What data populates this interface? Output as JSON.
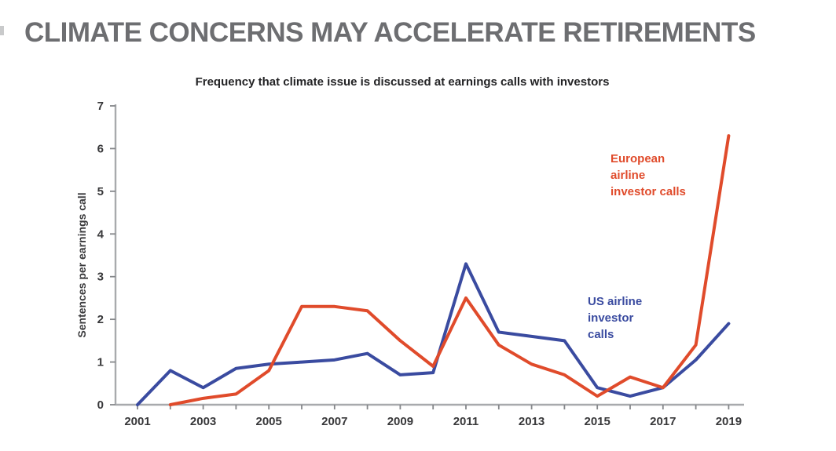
{
  "page": {
    "title": "CLIMATE CONCERNS MAY ACCELERATE RETIREMENTS"
  },
  "chart_data": {
    "type": "line",
    "title": "Frequency that climate issue is discussed at earnings calls with investors",
    "xlabel": "",
    "ylabel": "Sentences per earnings call",
    "x": [
      2001,
      2002,
      2003,
      2004,
      2005,
      2006,
      2007,
      2008,
      2009,
      2010,
      2011,
      2012,
      2013,
      2014,
      2015,
      2016,
      2017,
      2018,
      2019
    ],
    "x_tick_labels": [
      "2001",
      "2003",
      "2005",
      "2007",
      "2009",
      "2011",
      "2013",
      "2015",
      "2017",
      "2019"
    ],
    "y_ticks": [
      0,
      1,
      2,
      3,
      4,
      5,
      6,
      7
    ],
    "ylim": [
      0,
      7
    ],
    "grid": false,
    "legend_position": "inline-annotations",
    "series": [
      {
        "id": "us",
        "name": "US airline investor calls",
        "color": "#3a4ba0",
        "label_lines": [
          "US airline",
          "investor",
          "calls"
        ],
        "values": [
          0,
          0.8,
          0.4,
          0.85,
          0.95,
          1.0,
          1.05,
          1.2,
          0.7,
          0.75,
          3.3,
          1.7,
          1.6,
          1.5,
          0.4,
          0.2,
          0.4,
          1.05,
          1.9
        ]
      },
      {
        "id": "european",
        "name": "European airline investor calls",
        "color": "#e04b2b",
        "label_lines": [
          "European",
          "airline",
          "investor calls"
        ],
        "values": [
          null,
          0,
          0.15,
          0.25,
          0.8,
          2.3,
          2.3,
          2.2,
          1.5,
          0.9,
          2.5,
          1.4,
          0.95,
          0.7,
          0.2,
          0.65,
          0.4,
          1.4,
          6.3
        ]
      }
    ]
  },
  "colors": {
    "title_gray": "#6d6e71",
    "subtitle_dark": "#232325",
    "axis_gray": "#a8aaad",
    "tick_text": "#38383a",
    "us_blue": "#3a4ba0",
    "european_orange": "#e04b2b"
  }
}
